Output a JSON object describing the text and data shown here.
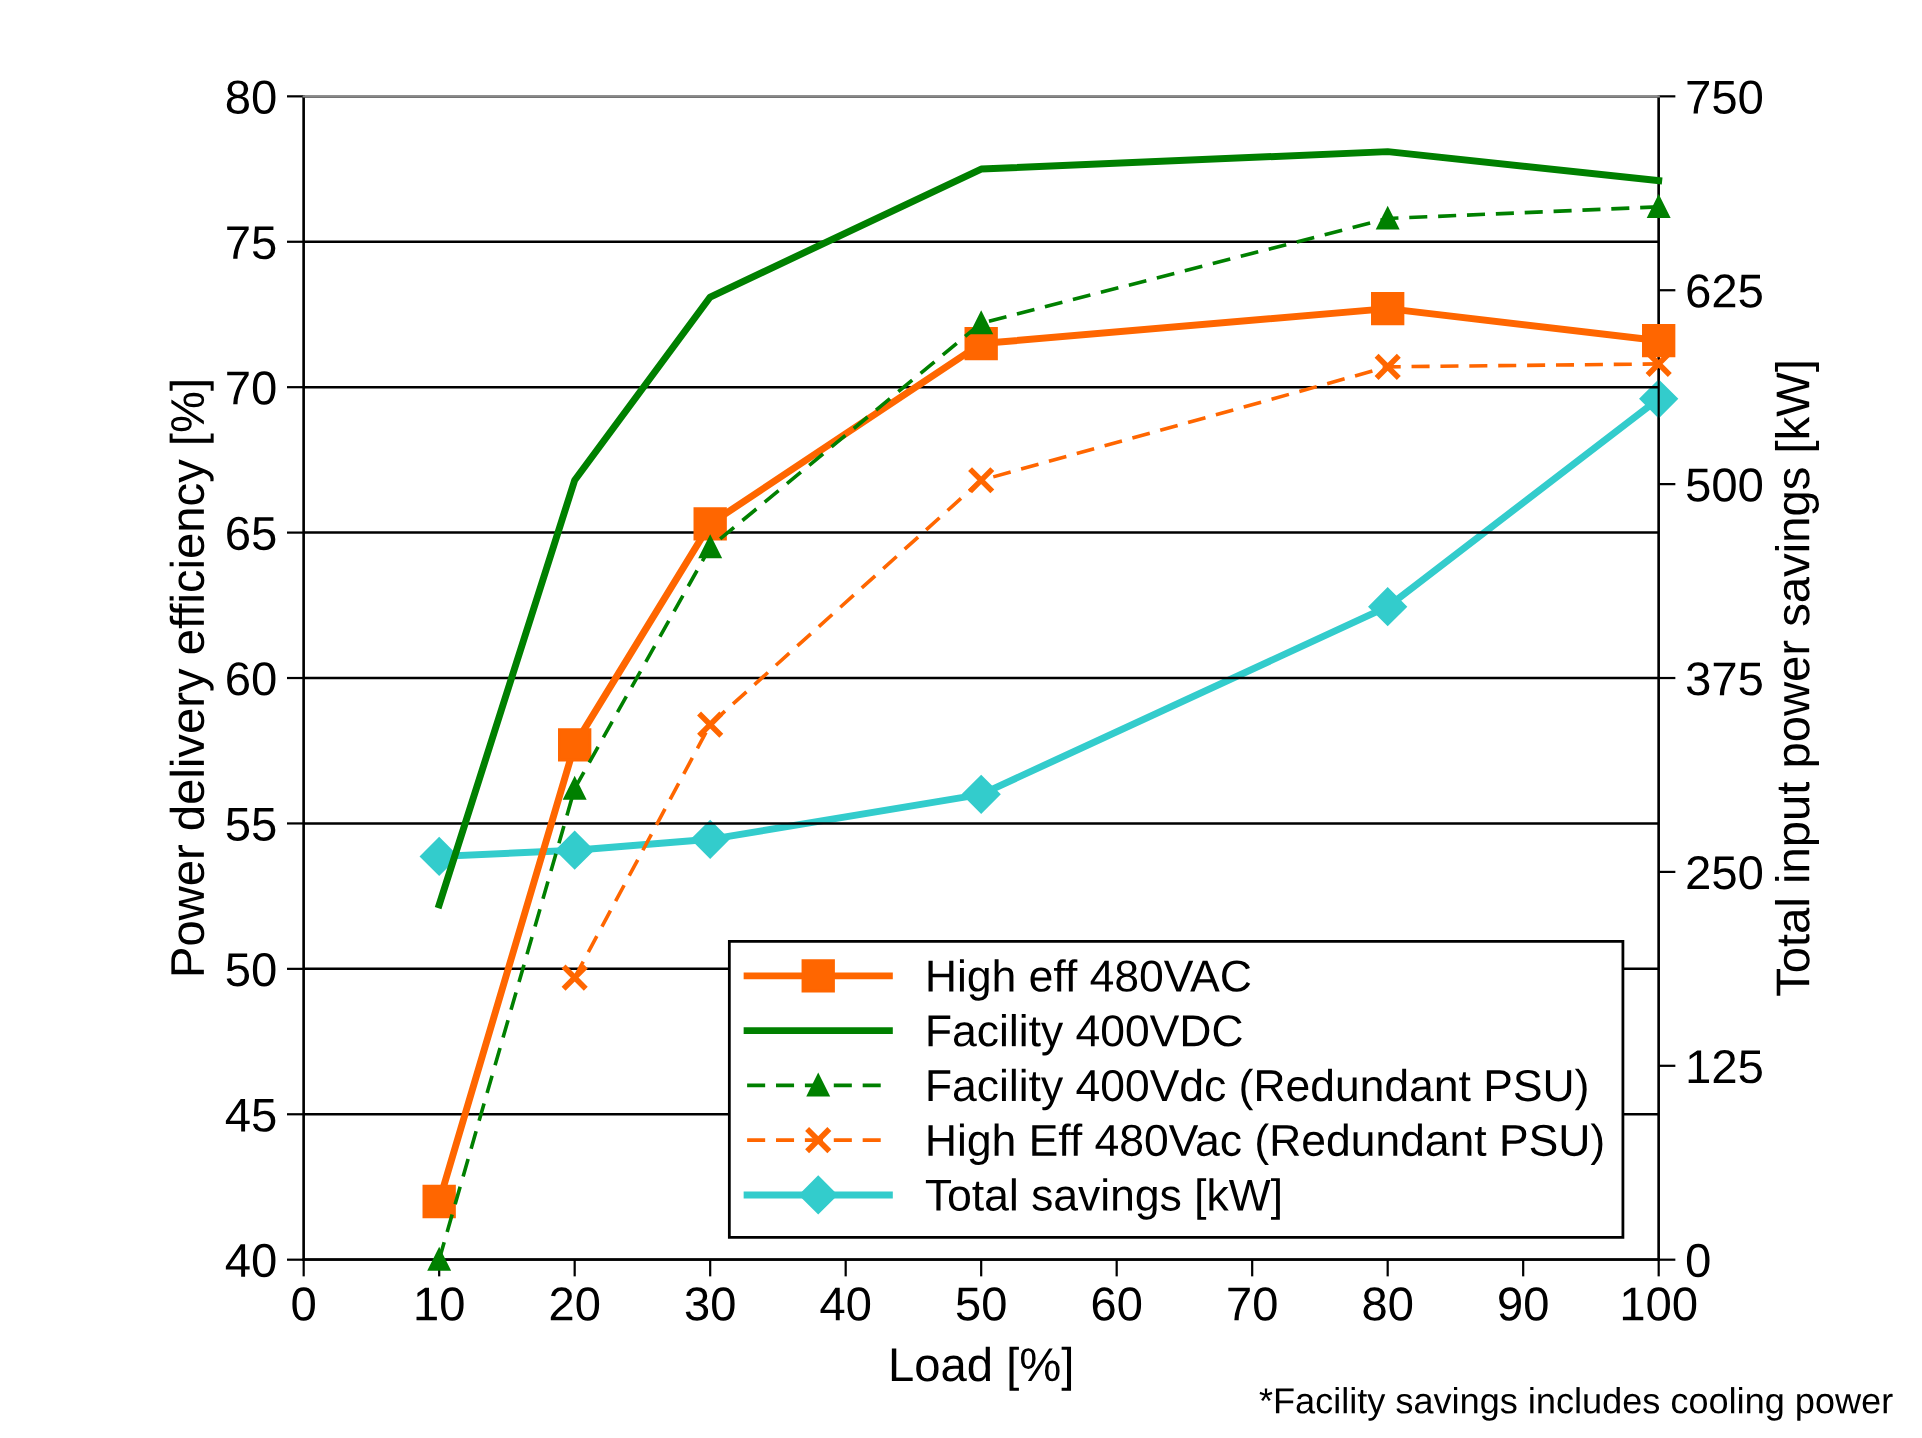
{
  "chart_data": {
    "type": "line",
    "xlabel": "Load [%]",
    "ylabel": "Power delivery efficiency [%]",
    "y2label": "Total input power savings [kW]",
    "xlim": [
      0,
      100
    ],
    "xticks": [
      0,
      10,
      20,
      30,
      40,
      50,
      60,
      70,
      80,
      90,
      100
    ],
    "ylim": [
      40,
      80
    ],
    "yticks": [
      40,
      45,
      50,
      55,
      60,
      65,
      70,
      75,
      80
    ],
    "y2lim": [
      0,
      750
    ],
    "y2ticks": [
      0,
      125,
      250,
      375,
      500,
      625,
      750
    ],
    "grid": "y",
    "legend": "bottom right",
    "annotations": [
      "*Facility savings includes cooling power"
    ],
    "series": [
      {
        "name": "High eff 480VAC",
        "color": "#ff6600",
        "marker": "square",
        "line_style": "solid",
        "x": [
          10,
          20,
          30,
          50,
          80,
          100
        ],
        "values": [
          42.0,
          57.7,
          65.3,
          71.5,
          72.7,
          71.6
        ]
      },
      {
        "name": "Facility 400VDC",
        "color": "#008000",
        "marker": "none",
        "line_style": "solid",
        "x": [
          10,
          20,
          30,
          50,
          80,
          100
        ],
        "values": [
          52.2,
          66.8,
          73.1,
          77.5,
          78.1,
          77.1
        ]
      },
      {
        "name": "Facility 400Vdc (Redundant PSU)",
        "color": "#008000",
        "marker": "triangle",
        "line_style": "dashed",
        "x": [
          10,
          20,
          30,
          50,
          80,
          100
        ],
        "values": [
          40.0,
          56.2,
          64.5,
          72.2,
          75.8,
          76.2
        ]
      },
      {
        "name": "High Eff 480Vac (Redundant PSU)",
        "color": "#ff6600",
        "marker": "cross",
        "line_style": "dashed",
        "x": [
          20,
          30,
          50,
          80,
          100
        ],
        "values": [
          49.7,
          58.4,
          66.8,
          70.7,
          70.8
        ]
      },
      {
        "name": "Total savings [kW]",
        "color": "#33cccc",
        "marker": "diamond",
        "line_style": "solid",
        "axis": "y2",
        "x": [
          10,
          20,
          30,
          50,
          80,
          100
        ],
        "values": [
          260,
          264,
          271,
          300,
          421,
          555
        ]
      }
    ]
  }
}
